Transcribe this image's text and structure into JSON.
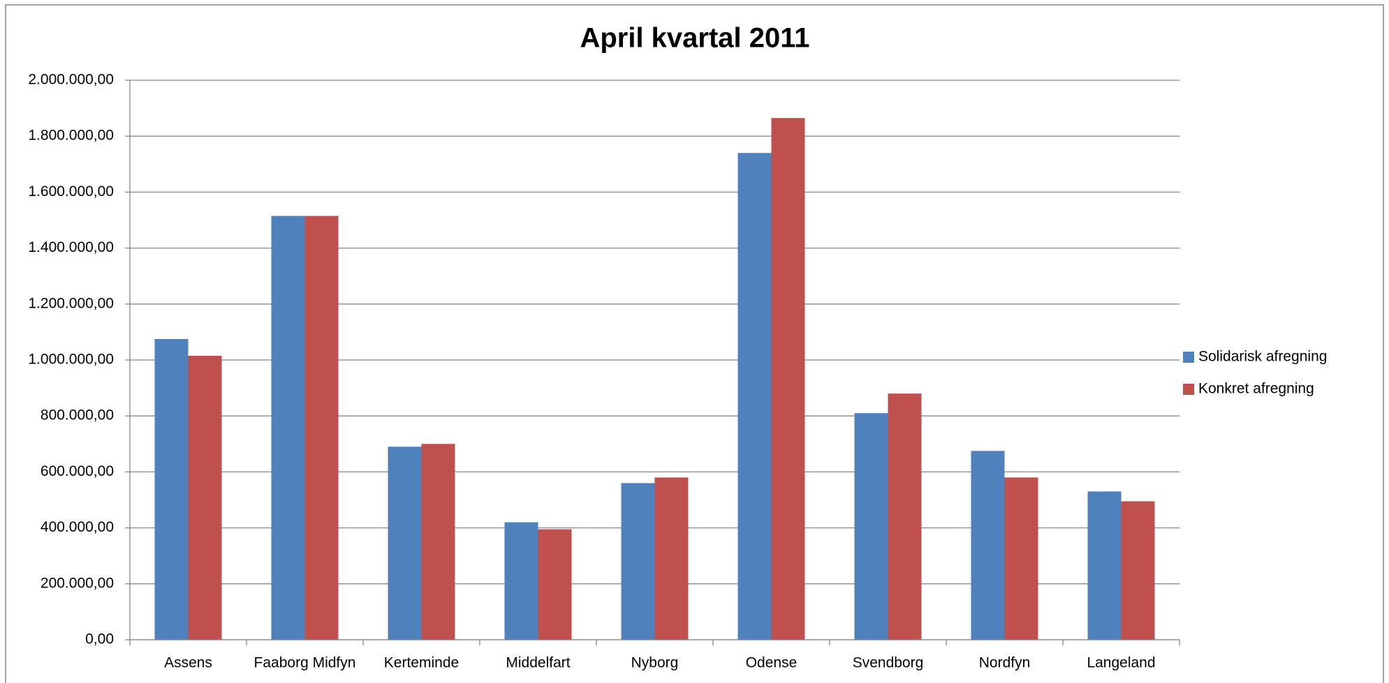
{
  "chart_data": {
    "type": "bar",
    "title": "April kvartal 2011",
    "categories": [
      "Assens",
      "Faaborg Midfyn",
      "Kerteminde",
      "Middelfart",
      "Nyborg",
      "Odense",
      "Svendborg",
      "Nordfyn",
      "Langeland"
    ],
    "series": [
      {
        "name": "Solidarisk afregning",
        "color": "#4f81bd",
        "values": [
          1075000,
          1515000,
          690000,
          420000,
          560000,
          1740000,
          810000,
          675000,
          530000
        ]
      },
      {
        "name": "Konkret afregning",
        "color": "#c0504d",
        "values": [
          1015000,
          1515000,
          700000,
          395000,
          580000,
          1865000,
          880000,
          580000,
          495000
        ]
      }
    ],
    "ylim": [
      0,
      2000000
    ],
    "yticks": [
      {
        "value": 0,
        "label": "0,00"
      },
      {
        "value": 200000,
        "label": "200.000,00"
      },
      {
        "value": 400000,
        "label": "400.000,00"
      },
      {
        "value": 600000,
        "label": "600.000,00"
      },
      {
        "value": 800000,
        "label": "800.000,00"
      },
      {
        "value": 1000000,
        "label": "1.000.000,00"
      },
      {
        "value": 1200000,
        "label": "1.200.000,00"
      },
      {
        "value": 1400000,
        "label": "1.400.000,00"
      },
      {
        "value": 1600000,
        "label": "1.600.000,00"
      },
      {
        "value": 1800000,
        "label": "1.800.000,00"
      },
      {
        "value": 2000000,
        "label": "2.000.000,00"
      }
    ],
    "grid": true,
    "legend": "right"
  }
}
